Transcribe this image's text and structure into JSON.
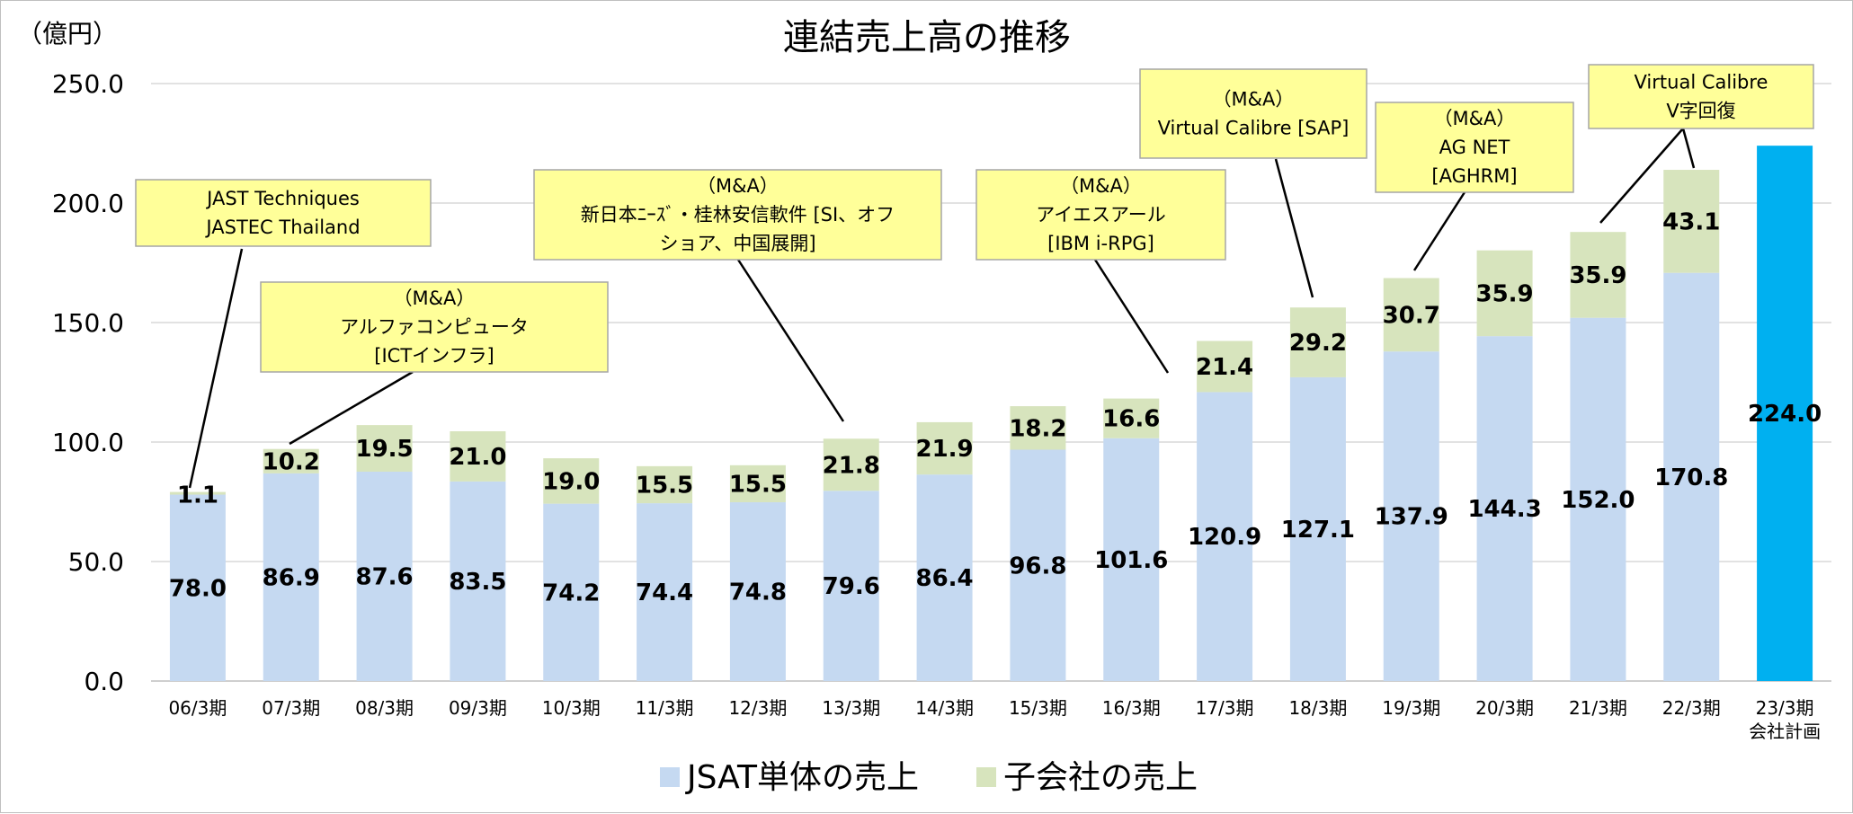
{
  "chart_data": {
    "type": "bar",
    "stacked": true,
    "title": "連結売上高の推移",
    "unit_label": "（億円）",
    "ylim": [
      0,
      250
    ],
    "yticks": [
      "0.0",
      "50.0",
      "100.0",
      "150.0",
      "200.0",
      "250.0"
    ],
    "grid": true,
    "legend_position": "bottom",
    "categories": [
      [
        "06/3期"
      ],
      [
        "07/3期"
      ],
      [
        "08/3期"
      ],
      [
        "09/3期"
      ],
      [
        "10/3期"
      ],
      [
        "11/3期"
      ],
      [
        "12/3期"
      ],
      [
        "13/3期"
      ],
      [
        "14/3期"
      ],
      [
        "15/3期"
      ],
      [
        "16/3期"
      ],
      [
        "17/3期"
      ],
      [
        "18/3期"
      ],
      [
        "19/3期"
      ],
      [
        "20/3期"
      ],
      [
        "21/3期"
      ],
      [
        "22/3期"
      ],
      [
        "23/3期",
        "会社計画"
      ]
    ],
    "series": [
      {
        "name": "JSAT単体の売上",
        "color": "#c5d9f1",
        "values": [
          78.0,
          86.9,
          87.6,
          83.5,
          74.2,
          74.4,
          74.8,
          79.6,
          86.4,
          96.8,
          101.6,
          120.9,
          127.1,
          137.9,
          144.3,
          152.0,
          170.8,
          null
        ],
        "labels": [
          "78.0",
          "86.9",
          "87.6",
          "83.5",
          "74.2",
          "74.4",
          "74.8",
          "79.6",
          "86.4",
          "96.8",
          "101.6",
          "120.9",
          "127.1",
          "137.9",
          "144.3",
          "152.0",
          "170.8",
          ""
        ]
      },
      {
        "name": "子会社の売上",
        "color": "#d7e4bd",
        "values": [
          1.1,
          10.2,
          19.5,
          21.0,
          19.0,
          15.5,
          15.5,
          21.8,
          21.9,
          18.2,
          16.6,
          21.4,
          29.2,
          30.7,
          35.9,
          35.9,
          43.1,
          null
        ],
        "labels": [
          "1.1",
          "10.2",
          "19.5",
          "21.0",
          "19.0",
          "15.5",
          "15.5",
          "21.8",
          "21.9",
          "18.2",
          "16.6",
          "21.4",
          "29.2",
          "30.7",
          "35.9",
          "35.9",
          "43.1",
          ""
        ]
      },
      {
        "name": "",
        "color": "#00b0f0",
        "values": [
          null,
          null,
          null,
          null,
          null,
          null,
          null,
          null,
          null,
          null,
          null,
          null,
          null,
          null,
          null,
          null,
          null,
          224.0
        ],
        "labels": [
          "",
          "",
          "",
          "",
          "",
          "",
          "",
          "",
          "",
          "",
          "",
          "",
          "",
          "",
          "",
          "",
          "",
          "224.0"
        ]
      }
    ],
    "legend": [
      {
        "name": "JSAT単体の売上",
        "color": "#c5d9f1"
      },
      {
        "name": "子会社の売上",
        "color": "#d7e4bd"
      }
    ],
    "annotations": [
      {
        "lines": [
          "JAST Techniques",
          "JASTEC Thailand"
        ],
        "target_index": 0
      },
      {
        "lines": [
          "（M&A）",
          "アルファコンピュータ",
          "[ICTインフラ]"
        ],
        "target_index": 1
      },
      {
        "lines": [
          "（M&A）",
          "新日本ﾆｰｽﾞ・桂林安信軟件 [SI、オフ",
          "ショア、中国展開]"
        ],
        "target_index": 7
      },
      {
        "lines": [
          "（M&A）",
          "アイエスアール",
          "[IBM i-RPG]"
        ],
        "target_index": 11
      },
      {
        "lines": [
          "（M&A）",
          "Virtual Calibre [SAP]"
        ],
        "target_index": 12
      },
      {
        "lines": [
          "（M&A）",
          "AG NET",
          "[AGHRM]"
        ],
        "target_index": 13
      },
      {
        "lines": [
          "Virtual Calibre",
          "V字回復"
        ],
        "target_index": [
          15,
          16
        ]
      }
    ],
    "annotation_style": {
      "fill": "#ffff99",
      "border": "#a6a6a6"
    },
    "colors": {
      "grid": "#d9d9d9",
      "axis": "#bfbfbf",
      "leader": "#000000"
    }
  }
}
